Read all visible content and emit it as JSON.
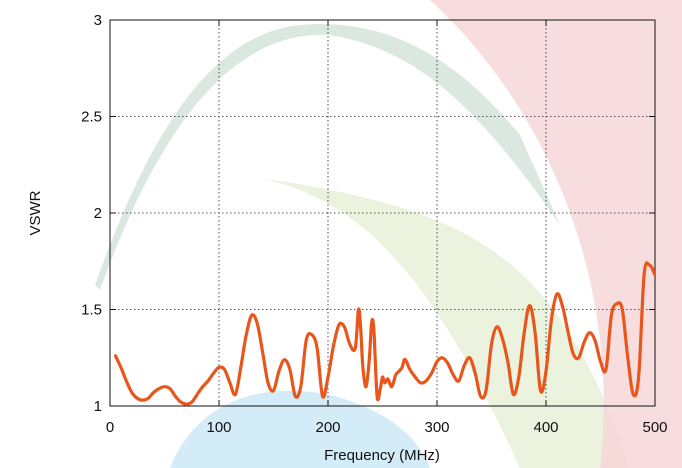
{
  "chart_data": {
    "type": "line",
    "title": "",
    "xlabel": "Frequency (MHz)",
    "ylabel": "VSWR",
    "xlim": [
      0,
      500
    ],
    "ylim": [
      1,
      3
    ],
    "x_ticks": [
      0,
      100,
      200,
      300,
      400,
      500
    ],
    "y_ticks": [
      1,
      1.5,
      2,
      2.5,
      3
    ],
    "x_tick_labels": [
      "0",
      "100",
      "200",
      "300",
      "400",
      "500"
    ],
    "y_tick_labels": [
      "1",
      "1.5",
      "2",
      "2.5",
      "3"
    ],
    "grid": true,
    "grid_style": "dotted",
    "legend": "none",
    "background_bands": [
      {
        "shape": "arc",
        "color": "#d6e6dc"
      },
      {
        "shape": "arc",
        "color": "#f6d5d7"
      },
      {
        "shape": "arc",
        "color": "#e8f0d8"
      },
      {
        "shape": "semicircle",
        "color": "#cfeaf6"
      }
    ],
    "series": [
      {
        "color": "#e8561c",
        "x": [
          5,
          10,
          15,
          20,
          25,
          30,
          35,
          40,
          45,
          50,
          55,
          60,
          65,
          70,
          75,
          80,
          85,
          90,
          95,
          100,
          105,
          110,
          115,
          120,
          125,
          130,
          135,
          140,
          145,
          150,
          155,
          160,
          165,
          170,
          175,
          180,
          185,
          190,
          195,
          200,
          205,
          210,
          215,
          220,
          225,
          228,
          230,
          232,
          235,
          238,
          240,
          242,
          245,
          248,
          250,
          252,
          255,
          258,
          260,
          262,
          265,
          268,
          270,
          272,
          275,
          280,
          285,
          290,
          295,
          300,
          305,
          310,
          315,
          320,
          325,
          330,
          335,
          340,
          345,
          350,
          355,
          360,
          365,
          370,
          375,
          380,
          385,
          390,
          395,
          400,
          405,
          410,
          415,
          420,
          425,
          430,
          435,
          440,
          445,
          450,
          455,
          460,
          465,
          470,
          475,
          480,
          485,
          490,
          495,
          500
        ],
        "y": [
          1.26,
          1.2,
          1.13,
          1.07,
          1.04,
          1.03,
          1.04,
          1.07,
          1.09,
          1.1,
          1.09,
          1.05,
          1.02,
          1.01,
          1.02,
          1.06,
          1.1,
          1.13,
          1.17,
          1.2,
          1.19,
          1.12,
          1.06,
          1.2,
          1.37,
          1.47,
          1.43,
          1.28,
          1.12,
          1.08,
          1.18,
          1.24,
          1.19,
          1.05,
          1.1,
          1.34,
          1.37,
          1.3,
          1.05,
          1.15,
          1.31,
          1.42,
          1.41,
          1.32,
          1.3,
          1.5,
          1.4,
          1.2,
          1.1,
          1.25,
          1.43,
          1.4,
          1.05,
          1.09,
          1.15,
          1.12,
          1.14,
          1.1,
          1.12,
          1.16,
          1.18,
          1.2,
          1.24,
          1.23,
          1.19,
          1.15,
          1.12,
          1.13,
          1.17,
          1.23,
          1.25,
          1.22,
          1.16,
          1.13,
          1.21,
          1.25,
          1.17,
          1.05,
          1.08,
          1.32,
          1.41,
          1.35,
          1.23,
          1.06,
          1.15,
          1.38,
          1.52,
          1.38,
          1.08,
          1.18,
          1.45,
          1.58,
          1.52,
          1.39,
          1.27,
          1.25,
          1.33,
          1.38,
          1.34,
          1.23,
          1.19,
          1.47,
          1.53,
          1.5,
          1.25,
          1.06,
          1.15,
          1.68,
          1.73,
          1.68
        ]
      }
    ]
  }
}
